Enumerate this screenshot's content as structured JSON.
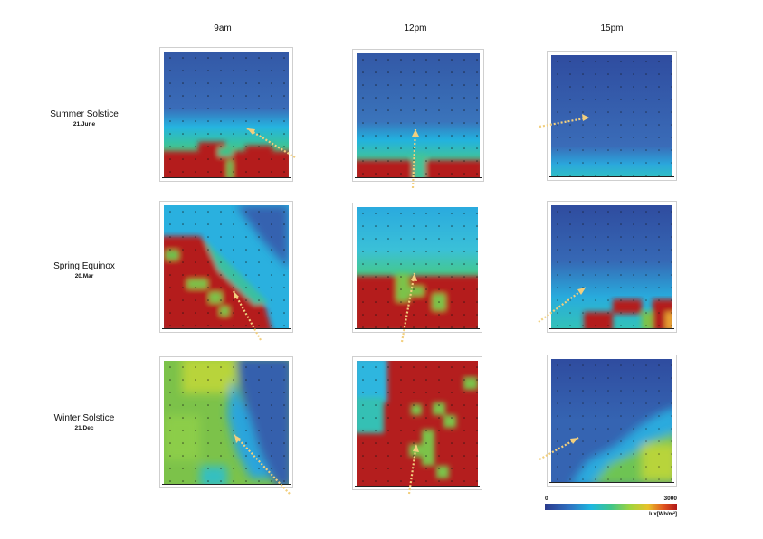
{
  "columns": [
    "9am",
    "12pm",
    "15pm"
  ],
  "rows": [
    {
      "title": "Summer Solstice",
      "date": "21.June"
    },
    {
      "title": "Spring Equinox",
      "date": "20.Mar"
    },
    {
      "title": "Winter Solstice",
      "date": "21.Dec"
    }
  ],
  "legend": {
    "min": "0",
    "max": "3000",
    "unit": "lux[Wh/m²]"
  },
  "colors": {
    "low": "#3458a8",
    "mid_low": "#2aa7df",
    "mid": "#30c0a0",
    "green": "#7cc24a",
    "high": "#b41e1e",
    "arrow": "#f2cf7e"
  }
}
